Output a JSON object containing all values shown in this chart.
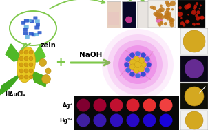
{
  "bg_color": "#ffffff",
  "zein_bubble_color": "#7ec84a",
  "zein_text": "zein",
  "haaucl4_text": "HAuCl₄",
  "naoh_text": "NaOH",
  "ag_label": "Ag⁺",
  "hg_label": "Hg²⁺",
  "arrow_color": "#7ec84a",
  "plus_color": "#7ec84a",
  "ag_dot_colors": [
    "#800030",
    "#a00030",
    "#c01030",
    "#d82030",
    "#e83030",
    "#f04040"
  ],
  "hg_dot_colors": [
    "#4020a0",
    "#3818b0",
    "#3010c0",
    "#2808c8",
    "#2005d0",
    "#1802d8"
  ],
  "glow_color": "#e040e0",
  "corn_yellow": "#e8c820",
  "corn_shadow": "#c8a810",
  "leaf_green": "#40a020",
  "gold_color": "#d4aa20",
  "strip1_bg": "#e8d0c0",
  "strip2_bg": "#080828",
  "strip3_bg": "#e8e4e0",
  "strip4_bg": "#080828",
  "right_img1_bg": "#f0f0f0",
  "right_img2_bg": "#100820",
  "right_img3_bg": "#181008",
  "right_img4_bg": "#f0f0f0",
  "dot_panel_bg": "#080808",
  "sem_bg1": "#f0f0f0",
  "sem_bg2": "#080808"
}
